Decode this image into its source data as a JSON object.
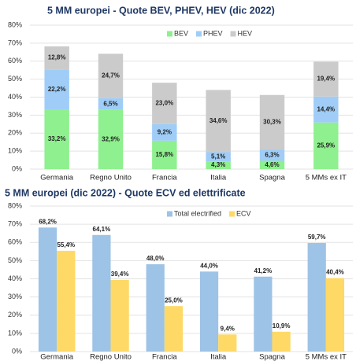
{
  "chart_data": [
    {
      "type": "stacked_bar",
      "title": "5 MM europei  - Quote BEV, PHEV, HEV (dic 2022)",
      "categories": [
        "Germania",
        "Regno Unito",
        "Francia",
        "Italia",
        "Spagna",
        "5 MMs ex IT"
      ],
      "series": [
        {
          "name": "BEV",
          "color": "#8ef08e",
          "values": [
            33.2,
            32.9,
            15.8,
            4.3,
            4.6,
            25.9
          ],
          "value_labels": [
            "33,2%",
            "32,9%",
            "15,8%",
            "4,3%",
            "4,6%",
            "25,9%"
          ]
        },
        {
          "name": "PHEV",
          "color": "#9fcdf7",
          "values": [
            22.2,
            6.5,
            9.2,
            5.1,
            6.3,
            14.4
          ],
          "value_labels": [
            "22,2%",
            "6,5%",
            "9,2%",
            "5,1%",
            "6,3%",
            "14,4%"
          ]
        },
        {
          "name": "HEV",
          "color": "#cbcbcb",
          "values": [
            12.8,
            24.7,
            23.0,
            34.6,
            30.3,
            19.4
          ],
          "value_labels": [
            "12,8%",
            "24,7%",
            "23,0%",
            "34,6%",
            "30,3%",
            "19,4%"
          ]
        }
      ],
      "ylim": [
        0,
        80
      ],
      "yticks": [
        {
          "value": 0,
          "label": "0%"
        },
        {
          "value": 10,
          "label": "10%"
        },
        {
          "value": 20,
          "label": "20%"
        },
        {
          "value": 30,
          "label": "30%"
        },
        {
          "value": 40,
          "label": "40%"
        },
        {
          "value": 50,
          "label": "50%"
        },
        {
          "value": 60,
          "label": "60%"
        },
        {
          "value": 70,
          "label": "70%"
        },
        {
          "value": 80,
          "label": "80%"
        }
      ]
    },
    {
      "type": "bar",
      "title": "5 MM europei (dic 2022) - Quote ECV ed elettrificate",
      "categories": [
        "Germania",
        "Regno Unito",
        "Francia",
        "Italia",
        "Spagna",
        "5 MMs ex IT"
      ],
      "series": [
        {
          "name": "Total electrified",
          "color": "#9dc3e6",
          "values": [
            68.2,
            64.1,
            48.0,
            44.0,
            41.2,
            59.7
          ],
          "value_labels": [
            "68,2%",
            "64,1%",
            "48,0%",
            "44,0%",
            "41,2%",
            "59,7%"
          ]
        },
        {
          "name": "ECV",
          "color": "#ffd966",
          "values": [
            55.4,
            39.4,
            25.0,
            9.4,
            10.9,
            40.4
          ],
          "value_labels": [
            "55,4%",
            "39,4%",
            "25,0%",
            "9,4%",
            "10,9%",
            "40,4%"
          ]
        }
      ],
      "ylim": [
        0,
        80
      ],
      "yticks": [
        {
          "value": 0,
          "label": "0%"
        },
        {
          "value": 10,
          "label": "10%"
        },
        {
          "value": 20,
          "label": "20%"
        },
        {
          "value": 30,
          "label": "30%"
        },
        {
          "value": 40,
          "label": "40%"
        },
        {
          "value": 50,
          "label": "50%"
        },
        {
          "value": 60,
          "label": "60%"
        },
        {
          "value": 70,
          "label": "70%"
        },
        {
          "value": 80,
          "label": "80%"
        }
      ]
    }
  ]
}
